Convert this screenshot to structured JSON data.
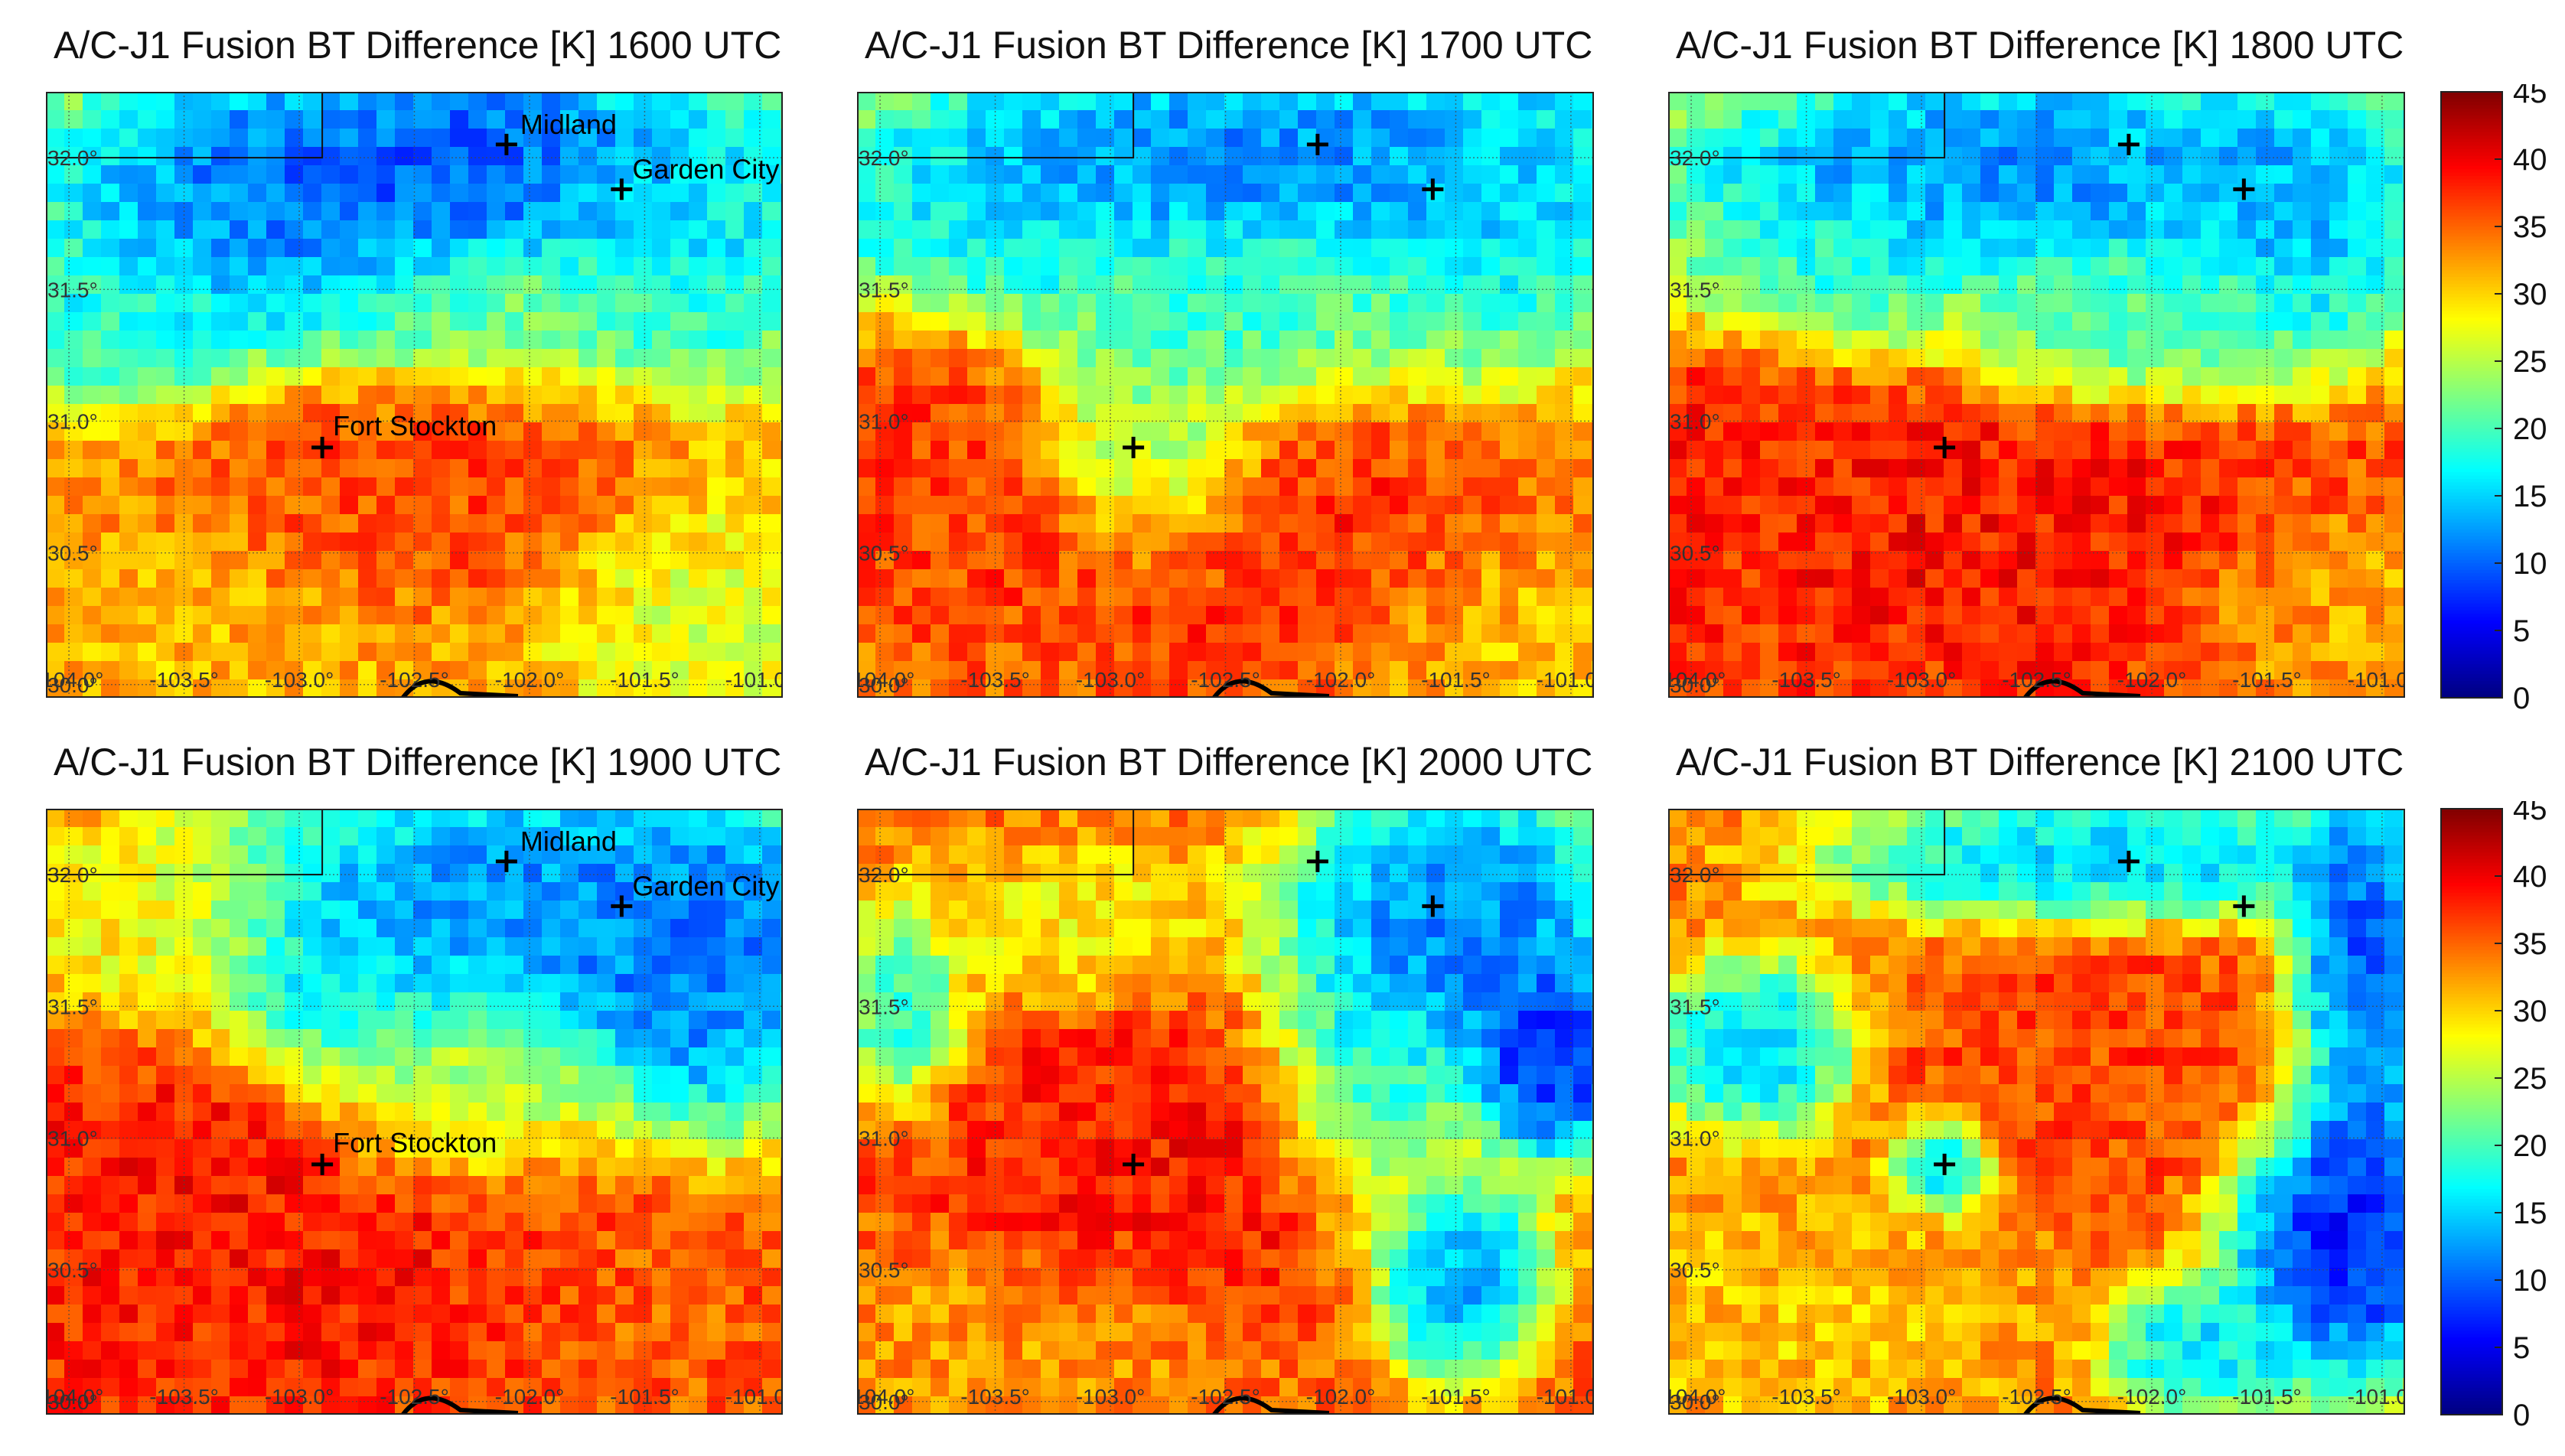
{
  "figure": {
    "colormap": "jet",
    "colorbar": {
      "min": 0,
      "max": 45,
      "ticks": [
        "45",
        "40",
        "35",
        "30",
        "25",
        "20",
        "15",
        "10",
        "5",
        "0"
      ]
    },
    "axes": {
      "lon_range": [
        -104.1,
        -100.9
      ],
      "lat_range": [
        29.95,
        32.25
      ],
      "lon_ticks": [
        -104.0,
        -103.5,
        -103.0,
        -102.5,
        -102.0,
        -101.5,
        -101.0
      ],
      "lon_tick_labels": [
        "-104.0°",
        "-103.5°",
        "-103.0°",
        "-102.5°",
        "-102.0°",
        "-101.5°",
        "-101.0°"
      ],
      "lat_ticks": [
        30.0,
        30.5,
        31.0,
        31.5,
        32.0
      ],
      "lat_tick_labels": [
        "30.0°",
        "30.5°",
        "31.0°",
        "31.5°",
        "32.0°"
      ]
    },
    "cities": [
      {
        "name": "Midland",
        "lon": -102.1,
        "lat": 32.05
      },
      {
        "name": "Garden City",
        "lon": -101.6,
        "lat": 31.88
      },
      {
        "name": "Fort Stockton",
        "lon": -102.9,
        "lat": 30.9
      }
    ]
  },
  "chart_data": [
    {
      "type": "heatmap",
      "title": "A/C-J1 Fusion BT Difference [K]  1600 UTC",
      "time": "1600 UTC",
      "city_labels": [
        "Midland",
        "Garden City",
        "Fort Stockton"
      ],
      "field": {
        "default": 32,
        "blobs": [
          {
            "lon": -103.0,
            "lat": 31.85,
            "rx": 0.9,
            "ry": 0.45,
            "value": 8
          },
          {
            "lon": -102.2,
            "lat": 32.0,
            "rx": 0.7,
            "ry": 0.3,
            "value": 7
          },
          {
            "lon": -101.3,
            "lat": 31.8,
            "rx": 0.6,
            "ry": 0.5,
            "value": 14
          },
          {
            "lon": -103.8,
            "lat": 31.4,
            "rx": 0.5,
            "ry": 0.3,
            "value": 17
          },
          {
            "lon": -102.2,
            "lat": 31.45,
            "rx": 0.5,
            "ry": 0.2,
            "value": 22
          },
          {
            "lon": -102.6,
            "lat": 30.7,
            "rx": 1.0,
            "ry": 0.35,
            "value": 37
          },
          {
            "lon": -101.2,
            "lat": 30.3,
            "rx": 0.6,
            "ry": 0.35,
            "value": 26
          },
          {
            "lon": -103.6,
            "lat": 30.3,
            "rx": 0.8,
            "ry": 0.35,
            "value": 31
          }
        ]
      }
    },
    {
      "type": "heatmap",
      "title": "A/C-J1 Fusion BT Difference [K]  1700 UTC",
      "time": "1700 UTC",
      "city_labels": [],
      "field": {
        "default": 34,
        "blobs": [
          {
            "lon": -102.4,
            "lat": 32.0,
            "rx": 1.4,
            "ry": 0.35,
            "value": 9
          },
          {
            "lon": -101.3,
            "lat": 31.85,
            "rx": 0.5,
            "ry": 0.5,
            "value": 14
          },
          {
            "lon": -103.6,
            "lat": 31.7,
            "rx": 0.6,
            "ry": 0.3,
            "value": 15
          },
          {
            "lon": -102.5,
            "lat": 31.4,
            "rx": 0.7,
            "ry": 0.25,
            "value": 18
          },
          {
            "lon": -102.8,
            "lat": 30.85,
            "rx": 0.35,
            "ry": 0.35,
            "value": 20
          },
          {
            "lon": -102.4,
            "lat": 30.5,
            "rx": 1.0,
            "ry": 0.4,
            "value": 38
          },
          {
            "lon": -103.8,
            "lat": 30.9,
            "rx": 0.4,
            "ry": 0.5,
            "value": 37
          },
          {
            "lon": -101.2,
            "lat": 30.2,
            "rx": 0.6,
            "ry": 0.35,
            "value": 30
          }
        ]
      }
    },
    {
      "type": "heatmap",
      "title": "A/C-J1 Fusion BT Difference [K]  1800 UTC",
      "time": "1800 UTC",
      "city_labels": [],
      "field": {
        "default": 36,
        "blobs": [
          {
            "lon": -102.6,
            "lat": 31.95,
            "rx": 1.3,
            "ry": 0.35,
            "value": 9
          },
          {
            "lon": -101.3,
            "lat": 31.8,
            "rx": 0.45,
            "ry": 0.45,
            "value": 12
          },
          {
            "lon": -103.5,
            "lat": 31.55,
            "rx": 0.6,
            "ry": 0.25,
            "value": 17
          },
          {
            "lon": -102.1,
            "lat": 31.35,
            "rx": 0.6,
            "ry": 0.25,
            "value": 18
          },
          {
            "lon": -102.5,
            "lat": 30.6,
            "rx": 1.1,
            "ry": 0.45,
            "value": 39
          },
          {
            "lon": -103.8,
            "lat": 30.9,
            "rx": 0.4,
            "ry": 0.5,
            "value": 38
          },
          {
            "lon": -101.2,
            "lat": 30.3,
            "rx": 0.6,
            "ry": 0.35,
            "value": 31
          }
        ]
      }
    },
    {
      "type": "heatmap",
      "title": "A/C-J1 Fusion BT Difference [K]  1900 UTC",
      "time": "1900 UTC",
      "city_labels": [
        "Midland",
        "Garden City",
        "Fort Stockton"
      ],
      "field": {
        "default": 36,
        "blobs": [
          {
            "lon": -102.0,
            "lat": 31.9,
            "rx": 1.2,
            "ry": 0.4,
            "value": 9
          },
          {
            "lon": -101.3,
            "lat": 31.6,
            "rx": 0.5,
            "ry": 0.5,
            "value": 8
          },
          {
            "lon": -102.8,
            "lat": 31.5,
            "rx": 0.4,
            "ry": 0.3,
            "value": 14
          },
          {
            "lon": -103.7,
            "lat": 31.8,
            "rx": 0.5,
            "ry": 0.3,
            "value": 28
          },
          {
            "lon": -102.3,
            "lat": 31.1,
            "rx": 0.5,
            "ry": 0.25,
            "value": 20
          },
          {
            "lon": -103.0,
            "lat": 30.7,
            "rx": 1.2,
            "ry": 0.55,
            "value": 39
          },
          {
            "lon": -101.5,
            "lat": 30.4,
            "rx": 0.7,
            "ry": 0.35,
            "value": 35
          }
        ]
      }
    },
    {
      "type": "heatmap",
      "title": "A/C-J1 Fusion BT Difference [K]  2000 UTC",
      "time": "2000 UTC",
      "city_labels": [],
      "field": {
        "default": 35,
        "blobs": [
          {
            "lon": -101.5,
            "lat": 31.8,
            "rx": 0.6,
            "ry": 0.45,
            "value": 8
          },
          {
            "lon": -101.1,
            "lat": 31.3,
            "rx": 0.3,
            "ry": 0.3,
            "value": 3
          },
          {
            "lon": -101.9,
            "lat": 31.2,
            "rx": 0.35,
            "ry": 0.4,
            "value": 13
          },
          {
            "lon": -101.5,
            "lat": 30.5,
            "rx": 0.3,
            "ry": 0.3,
            "value": 9
          },
          {
            "lon": -103.9,
            "lat": 31.5,
            "rx": 0.2,
            "ry": 0.3,
            "value": 16
          },
          {
            "lon": -103.2,
            "lat": 31.8,
            "rx": 0.6,
            "ry": 0.25,
            "value": 28
          },
          {
            "lon": -102.7,
            "lat": 30.9,
            "rx": 0.9,
            "ry": 0.5,
            "value": 39
          },
          {
            "lon": -103.4,
            "lat": 30.2,
            "rx": 0.8,
            "ry": 0.35,
            "value": 32
          }
        ]
      }
    },
    {
      "type": "heatmap",
      "title": "A/C-J1 Fusion BT Difference [K]  2100 UTC",
      "time": "2100 UTC",
      "city_labels": [],
      "field": {
        "default": 34,
        "blobs": [
          {
            "lon": -101.15,
            "lat": 30.65,
            "rx": 0.4,
            "ry": 0.45,
            "value": 3
          },
          {
            "lon": -101.1,
            "lat": 31.6,
            "rx": 0.25,
            "ry": 0.6,
            "value": 5
          },
          {
            "lon": -102.9,
            "lat": 30.9,
            "rx": 0.18,
            "ry": 0.14,
            "value": 10
          },
          {
            "lon": -103.7,
            "lat": 31.35,
            "rx": 0.35,
            "ry": 0.25,
            "value": 13
          },
          {
            "lon": -102.2,
            "lat": 32.05,
            "rx": 0.9,
            "ry": 0.2,
            "value": 12
          },
          {
            "lon": -102.2,
            "lat": 31.3,
            "rx": 0.8,
            "ry": 0.45,
            "value": 37
          },
          {
            "lon": -103.5,
            "lat": 30.3,
            "rx": 0.7,
            "ry": 0.35,
            "value": 30
          },
          {
            "lon": -101.8,
            "lat": 30.2,
            "rx": 0.3,
            "ry": 0.2,
            "value": 14
          }
        ]
      }
    }
  ]
}
